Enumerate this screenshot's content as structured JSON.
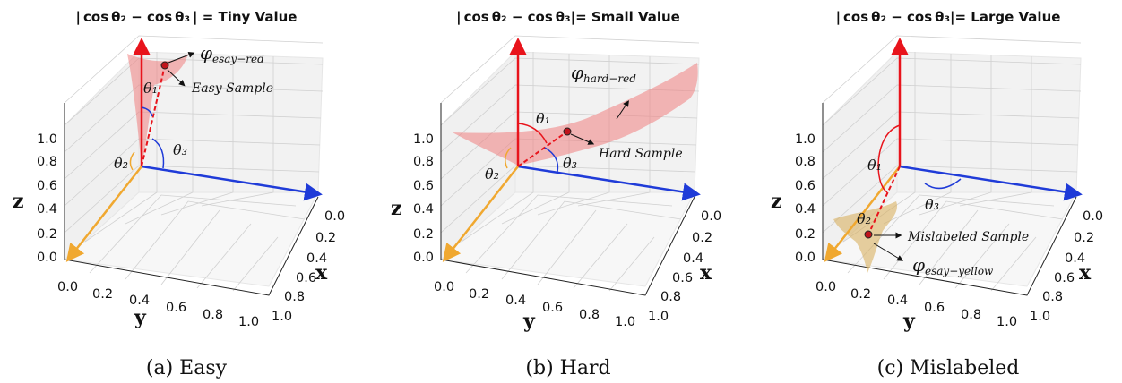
{
  "panels": [
    {
      "title": "| cos θ₂ − cos θ₃ | = Tiny Value",
      "caption": "(a)  Easy",
      "phi_label": "φ",
      "phi_sub": "esay−red",
      "sample_label": "Easy Sample",
      "theta1": "θ₁",
      "theta2": "θ₂",
      "theta3": "θ₃"
    },
    {
      "title": "| cos θ₂ − cos θ₃|= Small Value",
      "caption": "(b)  Hard",
      "phi_label": "φ",
      "phi_sub": "hard−red",
      "sample_label": "Hard Sample",
      "theta1": "θ₁",
      "theta2": "θ₂",
      "theta3": "θ₃"
    },
    {
      "title": "| cos θ₂ − cos θ₃|= Large Value",
      "caption": "(c)  Mislabeled",
      "phi_label": "φ",
      "phi_sub": "esay−yellow",
      "sample_label": "Mislabeled Sample",
      "theta1": "θ₁",
      "theta2": "θ₂",
      "theta3": "θ₃"
    }
  ],
  "axes": {
    "z_label": "z",
    "x_label": "x",
    "y_label": "y",
    "z_ticks": [
      "0.0",
      "0.2",
      "0.4",
      "0.6",
      "0.8",
      "1.0"
    ],
    "x_ticks": [
      "0.0",
      "0.2",
      "0.4",
      "0.6",
      "0.8",
      "1.0"
    ],
    "y_ticks": [
      "0.0",
      "0.2",
      "0.4",
      "0.6",
      "0.8",
      "1.0"
    ]
  },
  "colors": {
    "z_arrow": "#e8141c",
    "x_arrow": "#1f3bd8",
    "y_arrow": "#f0a830",
    "red_surface": "#f08080",
    "yellow_surface": "#d8b060"
  }
}
